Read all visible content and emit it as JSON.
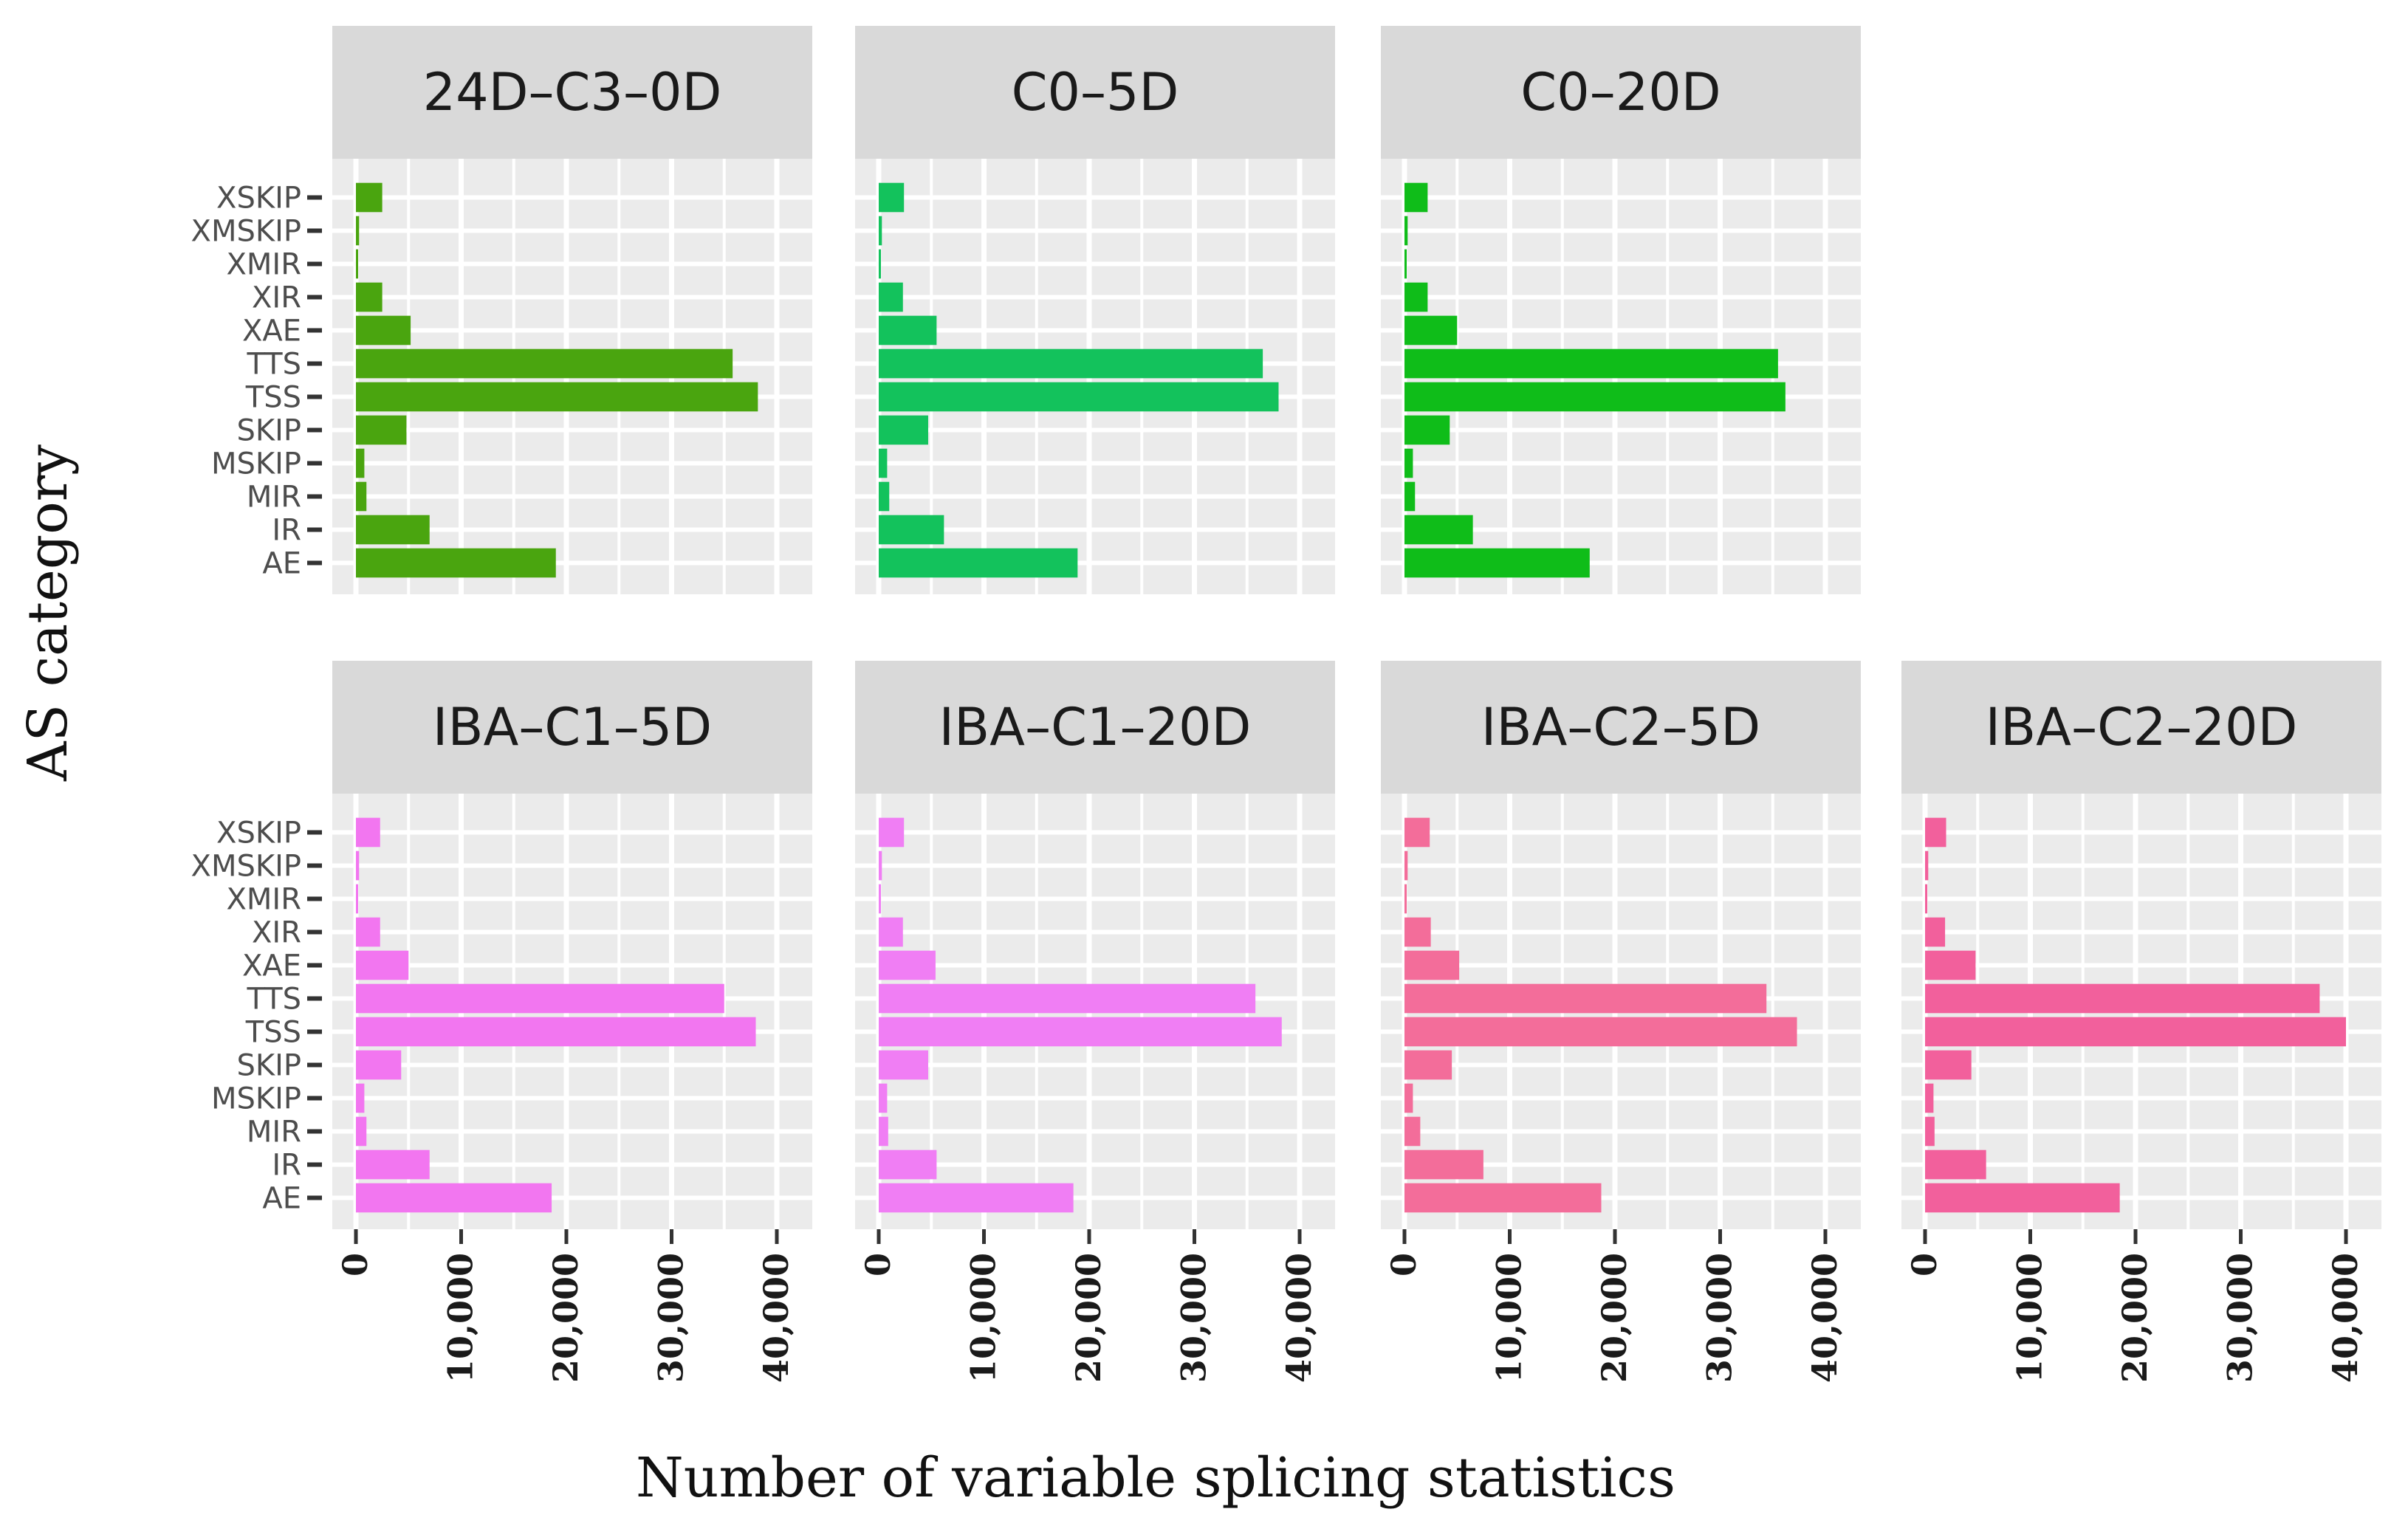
{
  "chart_data": {
    "type": "bar",
    "orientation": "horizontal",
    "facet_layout": "2 rows: 3 panels on top row, 4 panels on bottom row",
    "xlabel": "Number of variable splicing statistics",
    "ylabel": "AS category",
    "xlim": [
      0,
      40000
    ],
    "xticks": [
      0,
      10000,
      20000,
      30000,
      40000
    ],
    "xtick_labels": [
      "0",
      "10,000",
      "20,000",
      "30,000",
      "40,000"
    ],
    "categories": [
      "XSKIP",
      "XMSKIP",
      "XMIR",
      "XIR",
      "XAE",
      "TTS",
      "TSS",
      "SKIP",
      "MSKIP",
      "MIR",
      "IR",
      "AE"
    ],
    "grid": true,
    "panels": [
      {
        "name": "24D–C3–0D",
        "color": "#4aa50f",
        "values": [
          2500,
          300,
          200,
          2500,
          5200,
          35800,
          38200,
          4800,
          800,
          1000,
          7000,
          19000
        ]
      },
      {
        "name": "C0–5D",
        "color": "#13c25c",
        "values": [
          2400,
          300,
          200,
          2300,
          5500,
          36500,
          38000,
          4700,
          800,
          1000,
          6200,
          18900
        ]
      },
      {
        "name": "C0–20D",
        "color": "#0fbd19",
        "values": [
          2200,
          300,
          200,
          2200,
          5000,
          35500,
          36200,
          4300,
          800,
          1000,
          6500,
          17600
        ]
      },
      {
        "name": "IBA–C1–5D",
        "color": "#f276f0",
        "values": [
          2300,
          300,
          200,
          2300,
          5000,
          35000,
          38000,
          4300,
          800,
          1000,
          7000,
          18600
        ]
      },
      {
        "name": "IBA–C1–20D",
        "color": "#f07ef4",
        "values": [
          2400,
          300,
          200,
          2300,
          5400,
          35800,
          38300,
          4700,
          800,
          900,
          5500,
          18500
        ]
      },
      {
        "name": "IBA–C2–5D",
        "color": "#f36d9a",
        "values": [
          2400,
          300,
          200,
          2500,
          5200,
          34400,
          37300,
          4500,
          800,
          1500,
          7500,
          18700
        ]
      },
      {
        "name": "IBA–C2–20D",
        "color": "#f2609c",
        "values": [
          2000,
          300,
          200,
          1900,
          4800,
          37500,
          40000,
          4400,
          800,
          900,
          5800,
          18500
        ]
      }
    ]
  }
}
